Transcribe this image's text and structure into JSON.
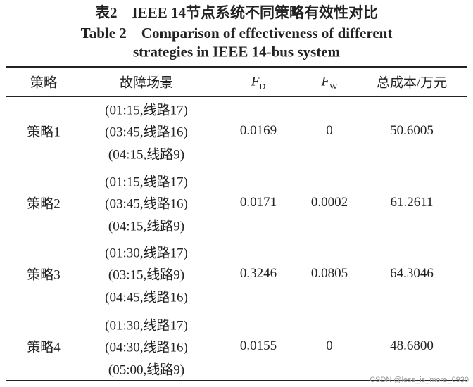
{
  "caption": {
    "cn": "表2　IEEE 14节点系统不同策略有效性对比",
    "en_line1": "Table 2　Comparison of effectiveness of different",
    "en_line2": "strategies in IEEE 14-bus system"
  },
  "table": {
    "header": {
      "strategy": "策略",
      "scenario": "故障场景",
      "fd": {
        "main": "F",
        "sub": "D"
      },
      "fw": {
        "main": "F",
        "sub": "W"
      },
      "cost": "总成本/万元"
    },
    "rows": [
      {
        "strategy": "策略1",
        "scenarios": [
          "(01:15,线路17)",
          "(03:45,线路16)",
          "(04:15,线路9)"
        ],
        "fd": "0.0169",
        "fw": "0",
        "cost": "50.6005"
      },
      {
        "strategy": "策略2",
        "scenarios": [
          "(01:15,线路17)",
          "(03:45,线路16)",
          "(04:15,线路9)"
        ],
        "fd": "0.0171",
        "fw": "0.0002",
        "cost": "61.2611"
      },
      {
        "strategy": "策略3",
        "scenarios": [
          "(01:30,线路17)",
          "(03:15,线路9)",
          "(04:45,线路16)"
        ],
        "fd": "0.3246",
        "fw": "0.0805",
        "cost": "64.3046"
      },
      {
        "strategy": "策略4",
        "scenarios": [
          "(01:30,线路17)",
          "(04:30,线路16)",
          "(05:00,线路9)"
        ],
        "fd": "0.0155",
        "fw": "0",
        "cost": "48.6800"
      }
    ]
  },
  "watermark": "CSDN @less_is_more_0930"
}
